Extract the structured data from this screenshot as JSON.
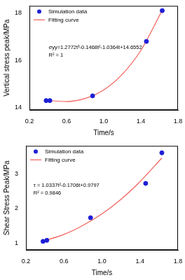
{
  "chart_data": [
    {
      "type": "scatter",
      "y_label": "Vertical stress peak/MPa",
      "x_label": "Time/s",
      "xlim": [
        0.2,
        1.8
      ],
      "xticks": [
        0.2,
        0.6,
        {
          "value": 1,
          "label": "1.0"
        },
        1.4,
        1.8
      ],
      "ylim": [
        13.9,
        18.3
      ],
      "yticks": [
        14,
        16,
        18
      ],
      "grid": false,
      "legend": "upper left",
      "annotations": [
        "σyy=1.2772t³-0.1468t²-1.0364t+14.6552",
        "R² = 1"
      ],
      "series": [
        {
          "name": "Simulation data",
          "type": "scatter",
          "color": "#1f1fd6",
          "marker": "circle",
          "x": [
            0.38,
            0.42,
            0.88,
            1.46,
            1.63
          ],
          "values": [
            14.3,
            14.3,
            14.5,
            16.8,
            18.1
          ]
        },
        {
          "name": "Fitting curve",
          "type": "line",
          "color": "#f0605a",
          "line_style": "solid",
          "x": [
            0.38,
            0.6,
            0.8,
            1.0,
            1.2,
            1.4,
            1.63
          ],
          "values": [
            14.31,
            14.26,
            14.39,
            14.75,
            15.41,
            16.42,
            18.11
          ]
        }
      ]
    },
    {
      "type": "scatter",
      "y_label": "Shear Stress Peak/MPa",
      "x_label": "Time/s",
      "xlim": [
        0.2,
        1.8
      ],
      "xticks": [
        0.2,
        0.6,
        {
          "value": 1,
          "label": "1.0"
        },
        1.4,
        1.8
      ],
      "ylim": [
        0.8,
        3.8
      ],
      "yticks": [
        1,
        2,
        3
      ],
      "grid": false,
      "legend": "upper left",
      "annotations": [
        "τ = 1.0337t²-0.1706t+0.9797",
        "R² = 0.9846"
      ],
      "series": [
        {
          "name": "Simulation data",
          "type": "scatter",
          "color": "#1f1fd6",
          "marker": "circle",
          "x": [
            0.38,
            0.42,
            0.88,
            1.46,
            1.63
          ],
          "values": [
            1.05,
            1.08,
            1.73,
            2.72,
            3.6
          ]
        },
        {
          "name": "Fitting curve",
          "type": "line",
          "color": "#f0605a",
          "line_style": "solid",
          "x": [
            0.38,
            0.6,
            0.8,
            1.0,
            1.2,
            1.4,
            1.63
          ],
          "values": [
            1.06,
            1.25,
            1.51,
            1.84,
            2.26,
            2.77,
            3.45
          ]
        }
      ]
    }
  ]
}
